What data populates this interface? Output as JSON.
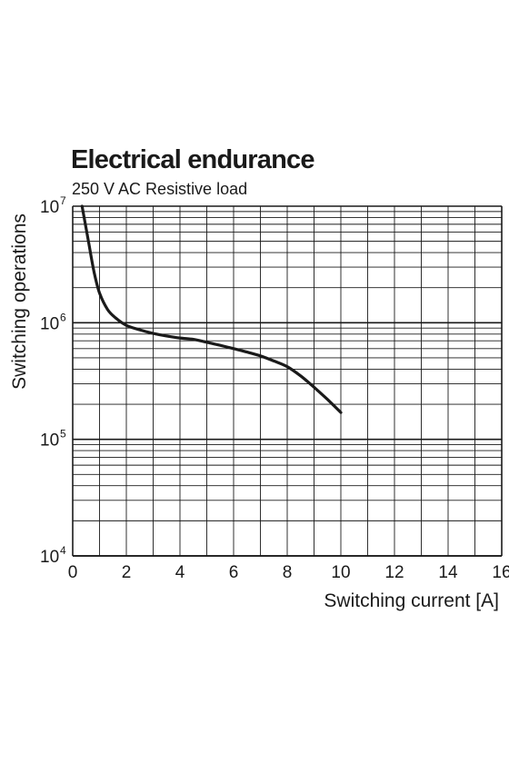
{
  "chart_data": {
    "type": "line",
    "title": "Electrical endurance",
    "subtitle": "250 V AC Resistive load",
    "xlabel": "Switching current [A]",
    "ylabel": "Switching operations",
    "xlim": [
      0,
      16
    ],
    "ylim": [
      10000,
      10000000
    ],
    "yscale": "log",
    "grid": true,
    "x_ticks": [
      0,
      2,
      4,
      6,
      8,
      10,
      12,
      14,
      16
    ],
    "y_ticks": [
      {
        "base": "10",
        "exp": "4",
        "value": 10000
      },
      {
        "base": "10",
        "exp": "5",
        "value": 100000
      },
      {
        "base": "10",
        "exp": "6",
        "value": 1000000
      },
      {
        "base": "10",
        "exp": "7",
        "value": 10000000
      }
    ],
    "series": [
      {
        "x": [
          0.35,
          0.6,
          0.8,
          1.0,
          1.3,
          1.6,
          2.0,
          2.5,
          3.0,
          3.5,
          4.0,
          4.5,
          5.0,
          5.5,
          6.0,
          6.5,
          7.0,
          7.5,
          8.0,
          8.5,
          9.0,
          9.5,
          10.0
        ],
        "y": [
          10000000,
          4800000,
          2700000,
          1800000,
          1300000,
          1100000,
          950000,
          870000,
          810000,
          770000,
          740000,
          720000,
          680000,
          640000,
          600000,
          560000,
          520000,
          470000,
          420000,
          350000,
          280000,
          220000,
          170000
        ]
      }
    ],
    "colors": {
      "line": "#1a1a1a",
      "grid": "#1a1a1a",
      "background": "#ffffff"
    }
  }
}
